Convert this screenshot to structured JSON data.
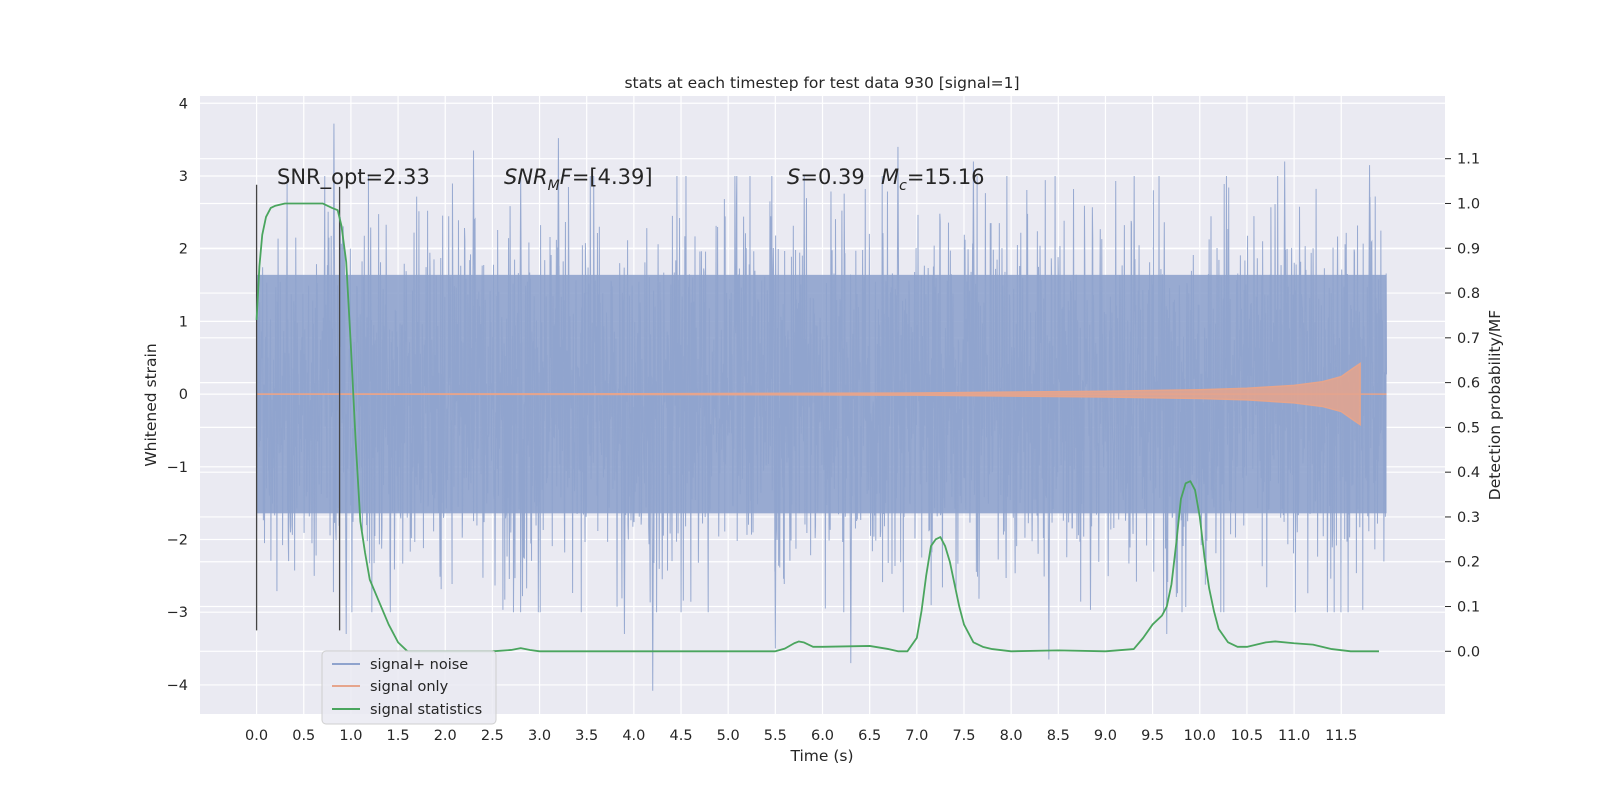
{
  "chart_data": {
    "type": "line",
    "title": "stats at each timestep for test data 930 [signal=1]",
    "xlabel": "Time (s)",
    "ylabel": "Whitened strain",
    "y2label": "Detection probability/MF",
    "xlim": [
      -0.6,
      12.6
    ],
    "ylim": [
      -4.4,
      4.1
    ],
    "y2lim": [
      -0.14,
      1.24
    ],
    "x_ticks": [
      0.0,
      0.5,
      1.0,
      1.5,
      2.0,
      2.5,
      3.0,
      3.5,
      4.0,
      4.5,
      5.0,
      5.5,
      6.0,
      6.5,
      7.0,
      7.5,
      8.0,
      8.5,
      9.0,
      9.5,
      10.0,
      10.5,
      11.0,
      11.5
    ],
    "x_tick_labels": [
      "0.0",
      "0.5",
      "1.0",
      "1.5",
      "2.0",
      "2.5",
      "3.0",
      "3.5",
      "4.0",
      "4.5",
      "5.0",
      "5.5",
      "6.0",
      "6.5",
      "7.0",
      "7.5",
      "8.0",
      "8.5",
      "9.0",
      "9.5",
      "10.0",
      "10.5",
      "11.0",
      "11.5"
    ],
    "y_ticks": [
      -4,
      -3,
      -2,
      -1,
      0,
      1,
      2,
      3,
      4
    ],
    "y_tick_labels": [
      "−4",
      "−3",
      "−2",
      "−1",
      "0",
      "1",
      "2",
      "3",
      "4"
    ],
    "y2_ticks": [
      0.0,
      0.1,
      0.2,
      0.3,
      0.4,
      0.5,
      0.6,
      0.7,
      0.8,
      0.9,
      1.0,
      1.1
    ],
    "y2_tick_labels": [
      "0.0",
      "0.1",
      "0.2",
      "0.3",
      "0.4",
      "0.5",
      "0.6",
      "0.7",
      "0.8",
      "0.9",
      "1.0",
      "1.1"
    ],
    "grid": true,
    "legend_position": "lower-left",
    "vertical_lines": [
      {
        "x": 0.0,
        "y_range": [
          -3.25,
          2.88
        ]
      },
      {
        "x": 0.88,
        "y_range": [
          -3.25,
          2.85
        ]
      }
    ],
    "annotations": {
      "snr_opt": "SNR_opt=2.33",
      "snr_mf_sym": "SNR",
      "snr_mf_sub": "M",
      "snr_mf_rest": "F",
      "snr_mf_value": "=[4.39]",
      "s_sym": "S",
      "s_value": "=0.39",
      "mc_sym": "M",
      "mc_sub": "c",
      "mc_value": "=15.16"
    },
    "series": [
      {
        "name": "signal+ noise",
        "color": "#8fa3cd",
        "x_range": [
          0.0,
          11.98
        ],
        "band_y_range": [
          -2.0,
          2.0
        ],
        "peaks": [
          {
            "x": 0.82,
            "y": 3.72
          },
          {
            "x": 0.95,
            "y": -3.3
          },
          {
            "x": 2.3,
            "y": 3.35
          },
          {
            "x": 2.8,
            "y": 3.0
          },
          {
            "x": 3.2,
            "y": 3.52
          },
          {
            "x": 3.9,
            "y": -3.3
          },
          {
            "x": 4.2,
            "y": -4.08
          },
          {
            "x": 6.3,
            "y": -3.7
          },
          {
            "x": 5.5,
            "y": -3.5
          },
          {
            "x": 6.8,
            "y": 3.4
          },
          {
            "x": 7.6,
            "y": 3.2
          },
          {
            "x": 8.4,
            "y": -3.65
          },
          {
            "x": 9.65,
            "y": -3.3
          },
          {
            "x": 10.9,
            "y": 3.2
          },
          {
            "x": 11.8,
            "y": 3.15
          }
        ]
      },
      {
        "name": "signal only",
        "color": "#e6a58c",
        "x": [
          0.0,
          4.0,
          7.0,
          9.0,
          10.0,
          10.5,
          11.0,
          11.3,
          11.5,
          11.62,
          11.7
        ],
        "amplitude": [
          0.0,
          0.005,
          0.015,
          0.04,
          0.06,
          0.08,
          0.12,
          0.17,
          0.24,
          0.35,
          0.42
        ]
      },
      {
        "name": "signal statistics",
        "color": "#4aa55e",
        "x": [
          0.0,
          0.03,
          0.06,
          0.1,
          0.15,
          0.2,
          0.3,
          0.5,
          0.7,
          0.8,
          0.86,
          0.9,
          0.95,
          1.0,
          1.05,
          1.1,
          1.15,
          1.2,
          1.3,
          1.4,
          1.5,
          1.6,
          1.8,
          2.0,
          2.5,
          2.7,
          2.8,
          2.9,
          3.0,
          4.0,
          5.0,
          5.5,
          5.6,
          5.7,
          5.75,
          5.8,
          5.9,
          6.0,
          6.5,
          6.7,
          6.8,
          6.9,
          7.0,
          7.05,
          7.1,
          7.15,
          7.2,
          7.25,
          7.3,
          7.35,
          7.4,
          7.45,
          7.5,
          7.6,
          7.7,
          7.8,
          8.0,
          8.5,
          9.0,
          9.3,
          9.4,
          9.5,
          9.6,
          9.65,
          9.7,
          9.75,
          9.8,
          9.85,
          9.9,
          9.95,
          10.0,
          10.05,
          10.1,
          10.15,
          10.2,
          10.3,
          10.4,
          10.5,
          10.6,
          10.7,
          10.8,
          11.0,
          11.2,
          11.4,
          11.6,
          11.8,
          11.9
        ],
        "y": [
          0.74,
          0.86,
          0.93,
          0.97,
          0.99,
          0.995,
          1.0,
          1.0,
          1.0,
          0.99,
          0.985,
          0.95,
          0.87,
          0.68,
          0.47,
          0.29,
          0.22,
          0.16,
          0.11,
          0.06,
          0.02,
          0.0,
          0.0,
          0.0,
          0.0,
          0.003,
          0.007,
          0.003,
          0.0,
          0.0,
          0.0,
          0.0,
          0.006,
          0.018,
          0.022,
          0.02,
          0.01,
          0.01,
          0.012,
          0.005,
          0.0,
          0.0,
          0.03,
          0.09,
          0.17,
          0.235,
          0.25,
          0.255,
          0.235,
          0.2,
          0.15,
          0.1,
          0.06,
          0.02,
          0.01,
          0.005,
          0.0,
          0.002,
          0.0,
          0.005,
          0.03,
          0.06,
          0.08,
          0.1,
          0.15,
          0.24,
          0.34,
          0.375,
          0.38,
          0.36,
          0.3,
          0.21,
          0.14,
          0.09,
          0.05,
          0.02,
          0.01,
          0.01,
          0.015,
          0.02,
          0.022,
          0.018,
          0.015,
          0.005,
          0.0,
          0.0,
          0.0
        ]
      }
    ]
  }
}
